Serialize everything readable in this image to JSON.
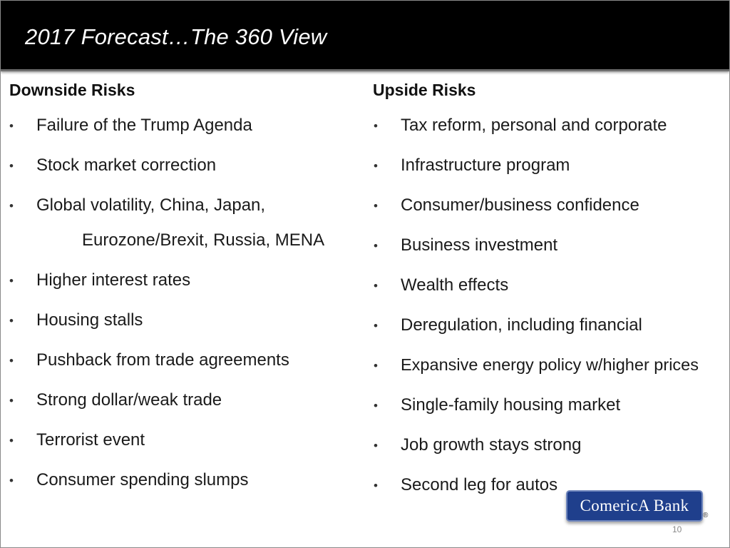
{
  "slide": {
    "title": "2017 Forecast…The 360 View",
    "page_number": "10"
  },
  "downside": {
    "heading": "Downside Risks",
    "items": [
      "Failure of the Trump Agenda",
      "Stock market correction",
      "Global volatility, China, Japan,",
      "Higher interest rates",
      "Housing stalls",
      "Pushback from trade agreements",
      "Strong dollar/weak trade",
      "Terrorist event",
      "Consumer spending slumps"
    ],
    "continuation": "Eurozone/Brexit, Russia, MENA"
  },
  "upside": {
    "heading": "Upside Risks",
    "items": [
      "Tax reform, personal and corporate",
      "Infrastructure program",
      "Consumer/business confidence",
      "Business investment",
      "Wealth effects",
      "Deregulation, including financial",
      "Expansive energy policy w/higher prices",
      "Single-family housing market",
      "Job growth stays strong",
      "Second leg for autos"
    ]
  },
  "bullet_char": "•",
  "logo": {
    "text": "ComericA Bank",
    "registered_mark": "®",
    "color": "#1f3f8c"
  }
}
